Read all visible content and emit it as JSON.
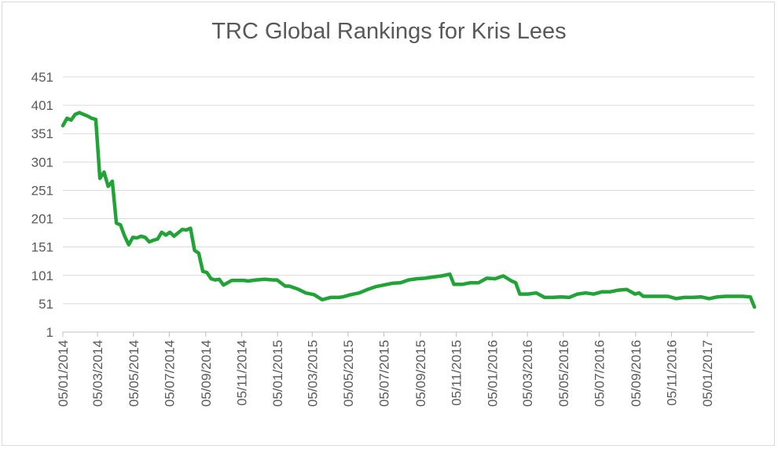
{
  "chart_data": {
    "type": "line",
    "title": "TRC Global Rankings for Kris Lees",
    "xlabel": "",
    "ylabel": "",
    "ylim": [
      1,
      451
    ],
    "yticks": [
      1,
      51,
      101,
      151,
      201,
      251,
      301,
      351,
      401,
      451
    ],
    "xlim": [
      "2014-01-05",
      "2017-03-26"
    ],
    "xticks": [
      "2014-01-05",
      "2014-03-05",
      "2014-05-05",
      "2014-07-05",
      "2014-09-05",
      "2014-11-05",
      "2015-01-05",
      "2015-03-05",
      "2015-05-05",
      "2015-07-05",
      "2015-09-05",
      "2015-11-05",
      "2016-01-05",
      "2016-03-05",
      "2016-05-05",
      "2016-07-05",
      "2016-09-05",
      "2016-11-05",
      "2017-01-05"
    ],
    "xtick_labels": [
      "05/01/2014",
      "05/03/2014",
      "05/05/2014",
      "05/07/2014",
      "05/09/2014",
      "05/11/2014",
      "05/01/2015",
      "05/03/2015",
      "05/05/2015",
      "05/07/2015",
      "05/09/2015",
      "05/11/2015",
      "05/01/2016",
      "05/03/2016",
      "05/05/2016",
      "05/07/2016",
      "05/09/2016",
      "05/11/2016",
      "05/01/2017"
    ],
    "grid": true,
    "line_color": "#22a338",
    "series": [
      {
        "x": [
          "2014-01-05",
          "2014-01-12",
          "2014-01-19",
          "2014-01-26",
          "2014-02-02",
          "2014-02-09",
          "2014-02-16",
          "2014-02-23",
          "2014-03-02",
          "2014-03-09",
          "2014-03-16",
          "2014-03-23",
          "2014-03-30",
          "2014-04-06",
          "2014-04-13",
          "2014-04-20",
          "2014-04-27",
          "2014-05-04",
          "2014-05-11",
          "2014-05-18",
          "2014-05-25",
          "2014-06-01",
          "2014-06-08",
          "2014-06-15",
          "2014-06-22",
          "2014-06-29",
          "2014-07-06",
          "2014-07-13",
          "2014-07-20",
          "2014-07-27",
          "2014-08-03",
          "2014-08-10",
          "2014-08-17",
          "2014-08-24",
          "2014-08-31",
          "2014-09-07",
          "2014-09-14",
          "2014-09-21",
          "2014-09-28",
          "2014-10-05",
          "2014-10-19",
          "2014-11-02",
          "2014-11-09",
          "2014-11-16",
          "2014-11-30",
          "2014-12-14",
          "2014-12-28",
          "2015-01-04",
          "2015-01-18",
          "2015-01-25",
          "2015-02-08",
          "2015-02-22",
          "2015-03-08",
          "2015-03-22",
          "2015-03-29",
          "2015-04-05",
          "2015-04-12",
          "2015-04-19",
          "2015-04-26",
          "2015-05-10",
          "2015-05-24",
          "2015-06-07",
          "2015-06-21",
          "2015-07-05",
          "2015-07-19",
          "2015-08-02",
          "2015-08-16",
          "2015-08-30",
          "2015-09-13",
          "2015-09-27",
          "2015-10-11",
          "2015-10-25",
          "2015-11-01",
          "2015-11-08",
          "2015-11-15",
          "2015-11-29",
          "2015-12-13",
          "2015-12-27",
          "2016-01-10",
          "2016-01-24",
          "2016-02-07",
          "2016-02-14",
          "2016-02-21",
          "2016-03-06",
          "2016-03-20",
          "2016-04-03",
          "2016-04-17",
          "2016-05-01",
          "2016-05-15",
          "2016-05-29",
          "2016-06-12",
          "2016-06-26",
          "2016-07-10",
          "2016-07-24",
          "2016-08-07",
          "2016-08-21",
          "2016-09-04",
          "2016-09-11",
          "2016-09-18",
          "2016-10-02",
          "2016-10-16",
          "2016-10-30",
          "2016-11-13",
          "2016-11-27",
          "2016-12-11",
          "2016-12-25",
          "2017-01-08",
          "2017-01-22",
          "2017-02-05",
          "2017-02-19",
          "2017-03-05",
          "2017-03-19",
          "2017-03-26"
        ],
        "y": [
          365,
          378,
          375,
          385,
          388,
          385,
          382,
          378,
          376,
          272,
          283,
          258,
          267,
          193,
          190,
          170,
          155,
          168,
          167,
          170,
          168,
          160,
          163,
          165,
          177,
          172,
          177,
          170,
          176,
          182,
          181,
          184,
          145,
          140,
          108,
          106,
          95,
          93,
          94,
          84,
          92,
          92,
          92,
          91,
          93,
          94,
          93,
          93,
          82,
          82,
          77,
          70,
          67,
          58,
          60,
          62,
          62,
          62,
          63,
          67,
          70,
          76,
          81,
          84,
          87,
          88,
          93,
          95,
          96,
          98,
          100,
          103,
          85,
          85,
          85,
          88,
          88,
          96,
          95,
          100,
          91,
          88,
          68,
          68,
          70,
          62,
          62,
          63,
          62,
          68,
          70,
          68,
          72,
          72,
          75,
          76,
          68,
          70,
          64,
          64,
          64,
          64,
          60,
          62,
          62,
          63,
          60,
          63,
          64,
          64,
          64,
          63,
          45
        ]
      }
    ]
  }
}
